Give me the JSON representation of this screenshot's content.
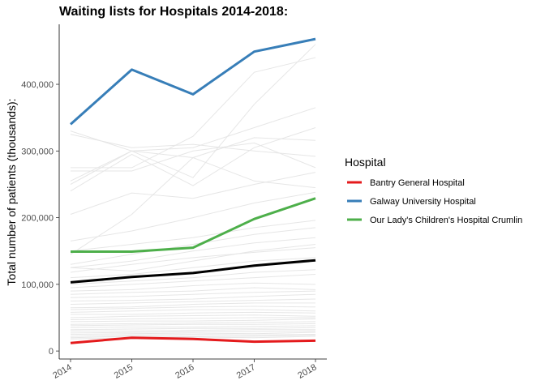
{
  "chart_data": {
    "type": "line",
    "title": "Waiting lists for Hospitals 2014-2018:",
    "xlabel": "",
    "ylabel": "Total number of patients (thousands):",
    "x": [
      "2014",
      "2015",
      "2016",
      "2017",
      "2018"
    ],
    "ylim": [
      -12000,
      490000
    ],
    "y_ticks": [
      0,
      100000,
      200000,
      300000,
      400000
    ],
    "y_tick_labels": [
      "0",
      "100,000",
      "200,000",
      "300,000",
      "400,000"
    ],
    "grid": false,
    "legend": {
      "title": "Hospital",
      "placement": "right"
    },
    "series": [
      {
        "name": "Bantry General Hospital",
        "color": "#e41a1c",
        "values": [
          12000,
          20000,
          18000,
          14000,
          15500
        ]
      },
      {
        "name": "Galway University Hospital",
        "color": "#377eb8",
        "values": [
          340000,
          422000,
          385000,
          449000,
          468000
        ]
      },
      {
        "name": "Our Lady's Children's Hospital Crumlin",
        "color": "#4daf4a",
        "values": [
          149000,
          149000,
          155000,
          198000,
          229000
        ]
      }
    ],
    "highlight_series": {
      "color": "#000000",
      "values": [
        103000,
        111000,
        117000,
        128000,
        136000
      ]
    },
    "background_series_color": "#e6e6e6",
    "background_series": [
      [
        330000,
        300000,
        260000,
        370000,
        460000
      ],
      [
        275000,
        275000,
        322000,
        418000,
        440000
      ],
      [
        255000,
        300000,
        305000,
        335000,
        365000
      ],
      [
        240000,
        295000,
        248000,
        305000,
        335000
      ],
      [
        325000,
        305000,
        310000,
        300000,
        292000
      ],
      [
        270000,
        270000,
        300000,
        312000,
        275000
      ],
      [
        145000,
        205000,
        290000,
        320000,
        316000
      ],
      [
        205000,
        237000,
        229000,
        250000,
        268000
      ],
      [
        250000,
        300000,
        290000,
        255000,
        245000
      ],
      [
        165000,
        180000,
        200000,
        222000,
        238000
      ],
      [
        150000,
        160000,
        170000,
        185000,
        196000
      ],
      [
        130000,
        145000,
        160000,
        175000,
        185000
      ],
      [
        125000,
        135000,
        150000,
        162000,
        170000
      ],
      [
        118000,
        130000,
        140000,
        148000,
        155000
      ],
      [
        125000,
        120000,
        135000,
        150000,
        160000
      ],
      [
        110000,
        115000,
        125000,
        135000,
        140000
      ],
      [
        100000,
        105000,
        110000,
        118000,
        122000
      ],
      [
        95000,
        100000,
        105000,
        110000,
        115000
      ],
      [
        90000,
        92000,
        98000,
        102000,
        100000
      ],
      [
        85000,
        88000,
        90000,
        95000,
        92000
      ],
      [
        80000,
        82000,
        85000,
        88000,
        90000
      ],
      [
        75000,
        76000,
        78000,
        82000,
        85000
      ],
      [
        70000,
        72000,
        74000,
        76000,
        78000
      ],
      [
        65000,
        66000,
        70000,
        72000,
        72000
      ],
      [
        62000,
        64000,
        66000,
        67000,
        66000
      ],
      [
        58000,
        60000,
        62000,
        62000,
        60000
      ],
      [
        55000,
        55000,
        57000,
        58000,
        57000
      ],
      [
        50000,
        52000,
        53000,
        54000,
        52000
      ],
      [
        47000,
        48000,
        49000,
        50000,
        50000
      ],
      [
        44000,
        45000,
        45000,
        46000,
        48000
      ],
      [
        40000,
        41000,
        42000,
        43000,
        44000
      ],
      [
        38000,
        39000,
        40000,
        40000,
        41000
      ],
      [
        35000,
        36000,
        36000,
        37000,
        38000
      ],
      [
        32000,
        33000,
        34000,
        34000,
        35000
      ],
      [
        30000,
        30000,
        31000,
        32000,
        32000
      ],
      [
        27000,
        28000,
        29000,
        29000,
        30000
      ],
      [
        25000,
        26000,
        27000,
        26000,
        28000
      ],
      [
        22000,
        24000,
        25000,
        24000,
        25000
      ],
      [
        20000,
        22000,
        22000,
        22000,
        24000
      ],
      [
        18000,
        20000,
        21000,
        20000,
        22000
      ]
    ]
  }
}
